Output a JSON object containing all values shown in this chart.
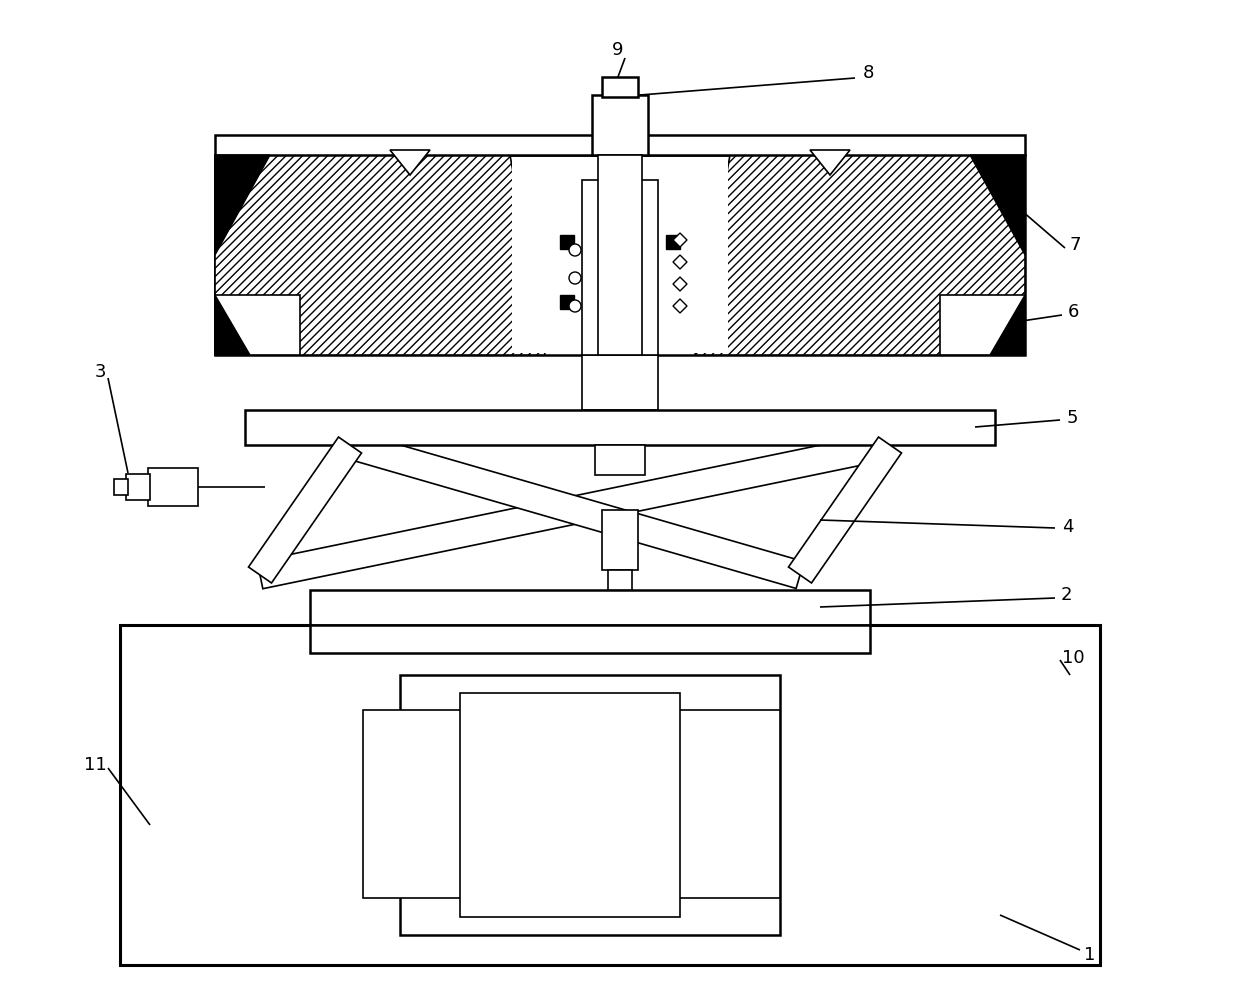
{
  "bg_color": "#ffffff",
  "line_color": "#000000",
  "figsize": [
    12.4,
    10.0
  ],
  "dpi": 100
}
